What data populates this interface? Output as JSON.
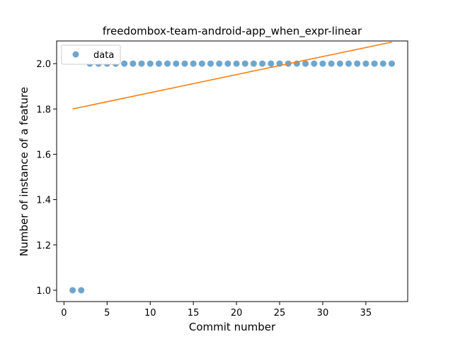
{
  "chart_data": {
    "type": "scatter",
    "title": "freedombox-team-android-app_when_expr-linear",
    "xlabel": "Commit number",
    "ylabel": "Number of instance of a feature",
    "xlim": [
      -0.85,
      39.85
    ],
    "ylim": [
      0.95,
      2.1
    ],
    "xticks": [
      0,
      5,
      10,
      15,
      20,
      25,
      30,
      35
    ],
    "yticks": [
      1.0,
      1.2,
      1.4,
      1.6,
      1.8,
      2.0
    ],
    "grid": false,
    "legend_position": "top-left",
    "series": [
      {
        "name": "data",
        "kind": "scatter",
        "color": "#1f77b4",
        "x": [
          1,
          2,
          3,
          4,
          5,
          6,
          7,
          8,
          9,
          10,
          11,
          12,
          13,
          14,
          15,
          16,
          17,
          18,
          19,
          20,
          21,
          22,
          23,
          24,
          25,
          26,
          27,
          28,
          29,
          30,
          31,
          32,
          33,
          34,
          35,
          36,
          37,
          38
        ],
        "y": [
          1,
          1,
          2,
          2,
          2,
          2,
          2,
          2,
          2,
          2,
          2,
          2,
          2,
          2,
          2,
          2,
          2,
          2,
          2,
          2,
          2,
          2,
          2,
          2,
          2,
          2,
          2,
          2,
          2,
          2,
          2,
          2,
          2,
          2,
          2,
          2,
          2,
          2
        ]
      },
      {
        "kind": "line",
        "color": "#ff7f0e",
        "x": [
          1,
          38
        ],
        "y": [
          1.8,
          2.095
        ]
      }
    ]
  }
}
